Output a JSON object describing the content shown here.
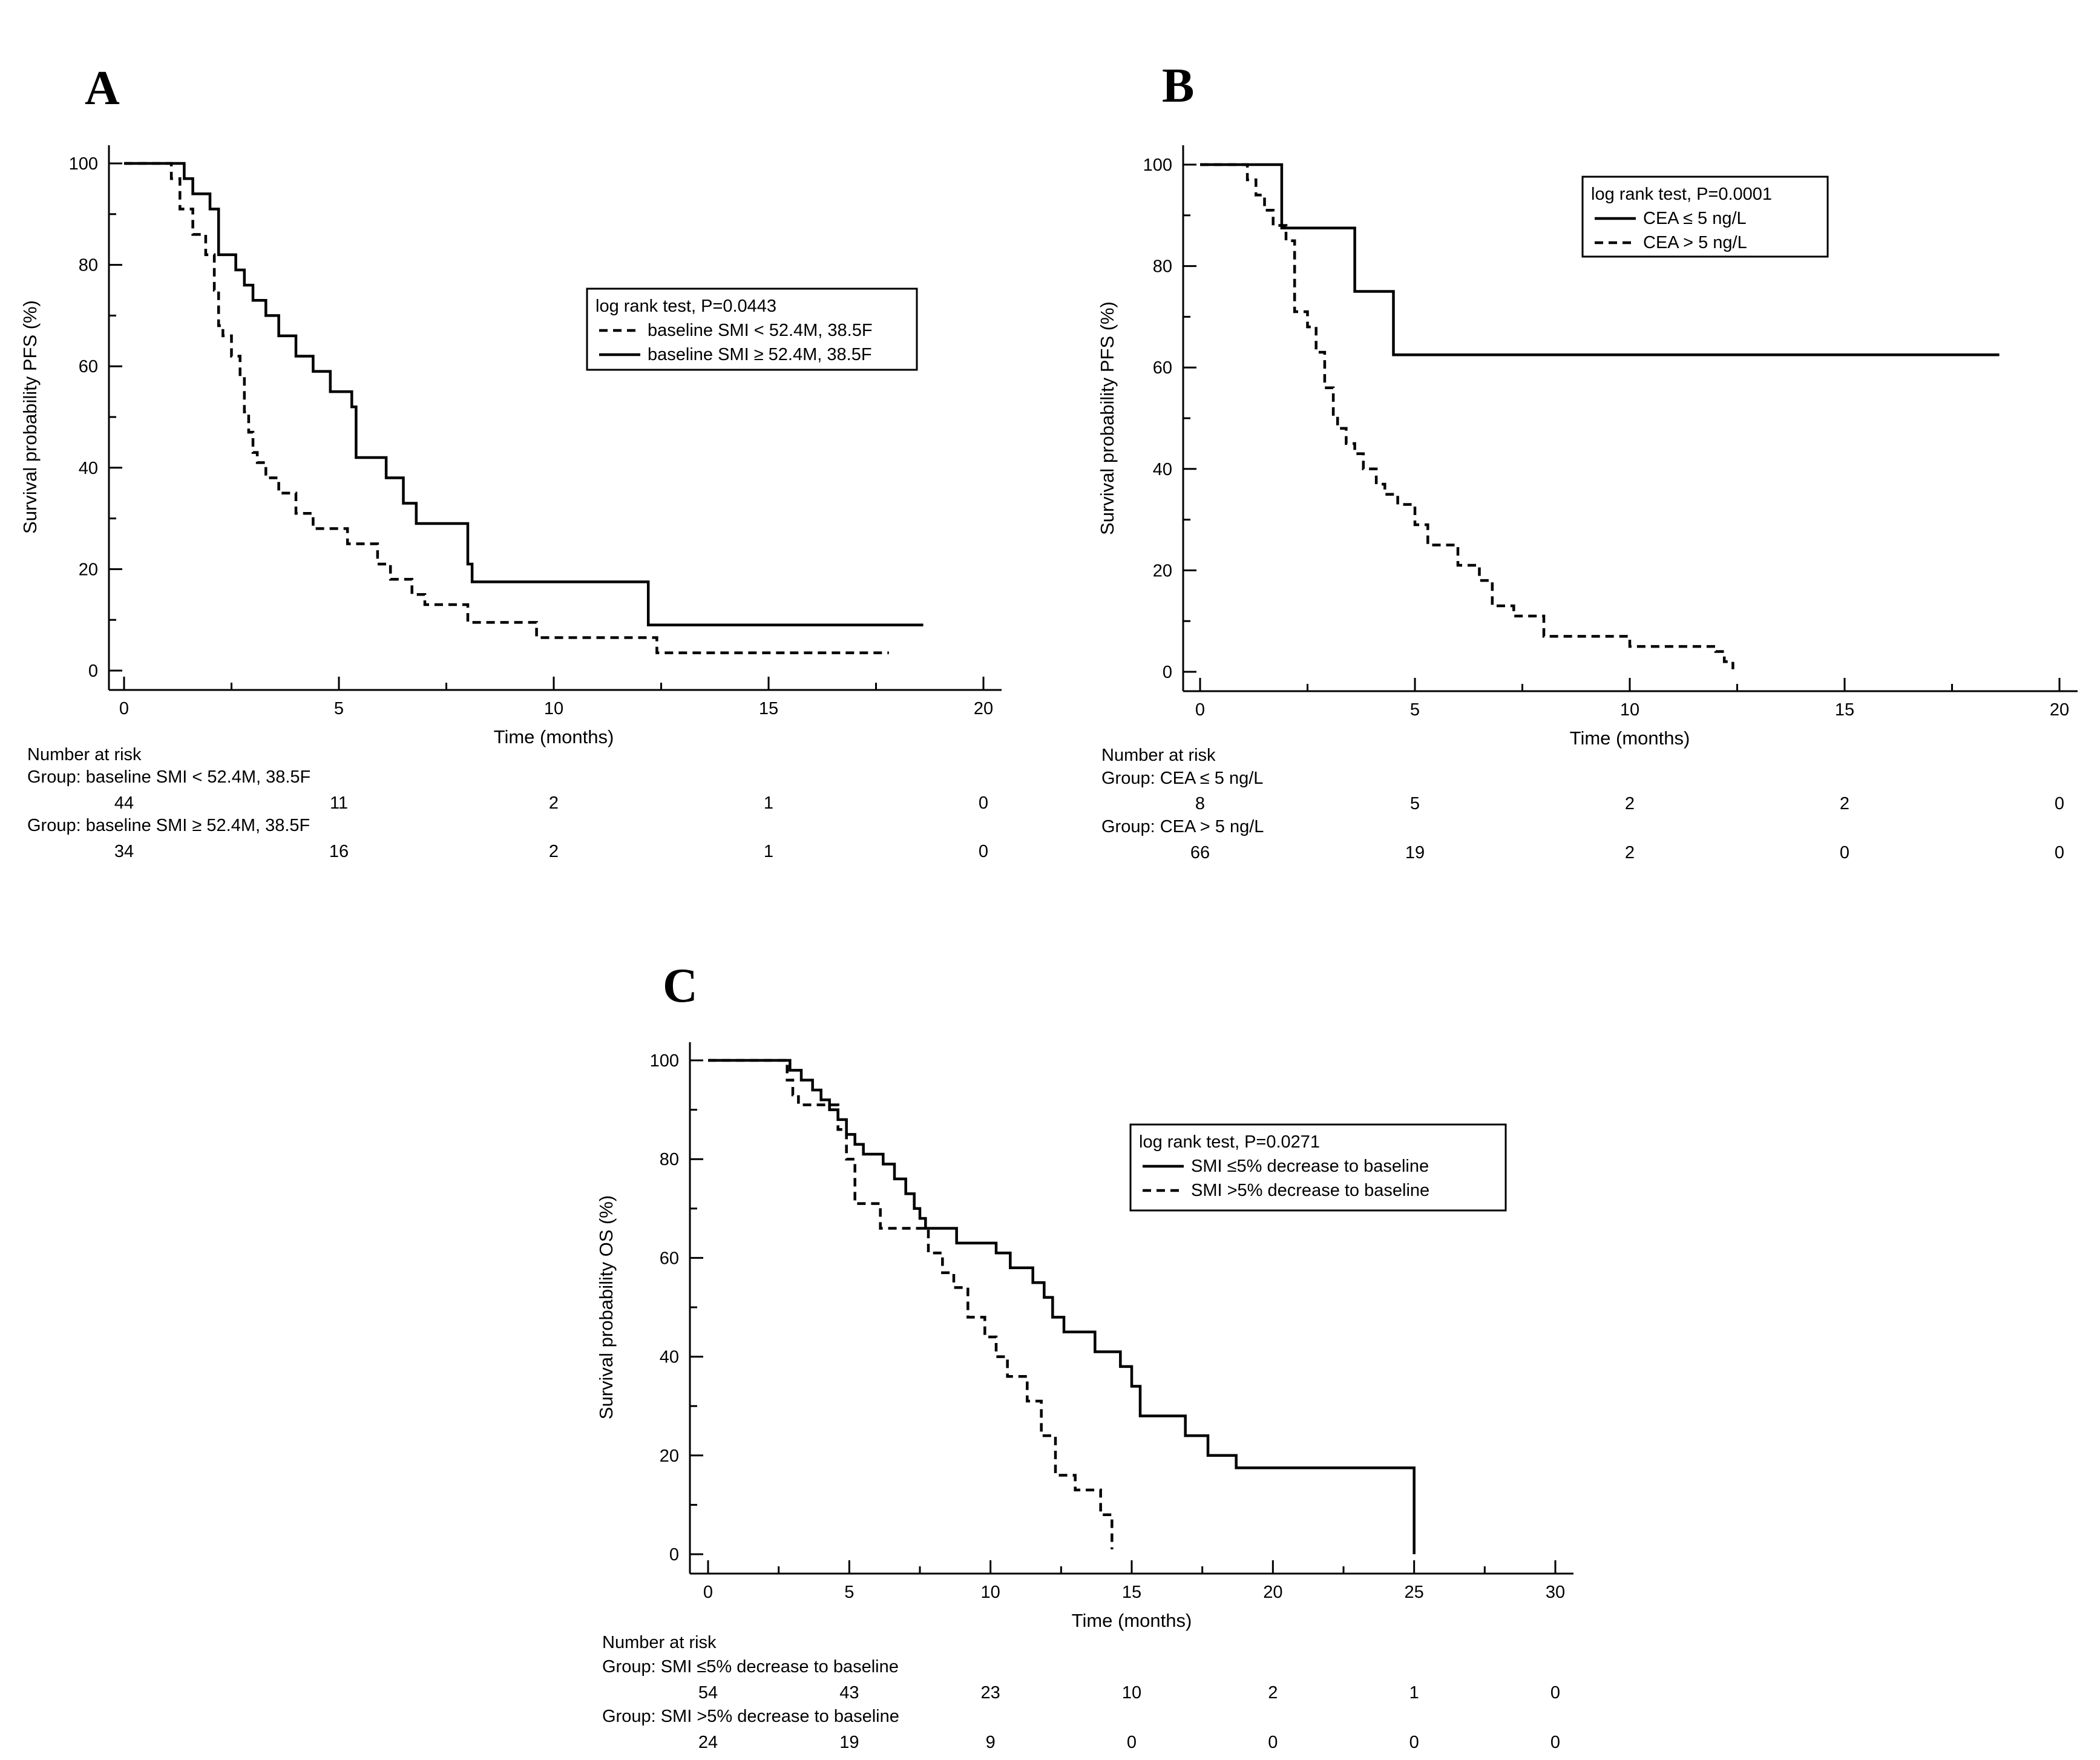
{
  "chart_data": [
    {
      "type": "line",
      "panel_label": "A",
      "xlabel": "Time (months)",
      "ylabel": "Survival probability PFS (%)",
      "xlim": [
        0,
        20
      ],
      "ylim": [
        0,
        100
      ],
      "x_ticks": [
        0,
        5,
        10,
        15,
        20
      ],
      "y_ticks": [
        0,
        20,
        40,
        60,
        80,
        100
      ],
      "legend": {
        "title": "log rank test, P=0.0443",
        "position": "top-right"
      },
      "series": [
        {
          "name": "baseline SMI < 52.4M, 38.5F",
          "style": "dashed",
          "x": [
            0,
            1.1,
            1.3,
            1.6,
            1.9,
            2.1,
            2.2,
            2.3,
            2.5,
            2.7,
            2.8,
            2.9,
            3.0,
            3.1,
            3.3,
            3.6,
            4.0,
            4.4,
            5.2,
            5.9,
            6.2,
            6.7,
            7.0,
            8.0,
            9.6,
            12.4,
            17.8
          ],
          "y": [
            100,
            97,
            91,
            86,
            82,
            75,
            68,
            66,
            62,
            58,
            51,
            47,
            43,
            41,
            38,
            35,
            31,
            28,
            25,
            21,
            18,
            15,
            13,
            9.5,
            6.5,
            3.5,
            3.5
          ]
        },
        {
          "name": "baseline SMI ≥ 52.4M, 38.5F",
          "style": "solid",
          "x": [
            0,
            1.4,
            1.6,
            2.0,
            2.2,
            2.6,
            2.8,
            3.0,
            3.3,
            3.6,
            4.0,
            4.4,
            4.8,
            5.3,
            5.4,
            6.1,
            6.5,
            6.8,
            8.0,
            8.1,
            12.2,
            18.6
          ],
          "y": [
            100,
            97,
            94,
            91,
            82,
            79,
            76,
            73,
            70,
            66,
            62,
            59,
            55,
            52,
            42,
            38,
            33,
            29,
            21,
            17.5,
            9,
            9
          ]
        }
      ],
      "risk_table": {
        "title": "Number at risk",
        "times": [
          0,
          5,
          10,
          15,
          20
        ],
        "groups": [
          {
            "label": "Group: baseline SMI < 52.4M, 38.5F",
            "counts": [
              44,
              11,
              2,
              1,
              0
            ]
          },
          {
            "label": "Group: baseline SMI ≥ 52.4M, 38.5F",
            "counts": [
              34,
              16,
              2,
              1,
              0
            ]
          }
        ]
      }
    },
    {
      "type": "line",
      "panel_label": "B",
      "xlabel": "Time (months)",
      "ylabel": "Survival probability PFS (%)",
      "xlim": [
        0,
        20
      ],
      "ylim": [
        0,
        100
      ],
      "x_ticks": [
        0,
        5,
        10,
        15,
        20
      ],
      "y_ticks": [
        0,
        20,
        40,
        60,
        80,
        100
      ],
      "legend": {
        "title": "log rank test, P=0.0001",
        "position": "top-right"
      },
      "series": [
        {
          "name": "CEA ≤ 5 ng/L",
          "style": "solid",
          "x": [
            0,
            1.9,
            3.6,
            4.5,
            18.6
          ],
          "y": [
            100,
            87.5,
            75,
            62.5,
            62.5
          ]
        },
        {
          "name": "CEA > 5 ng/L",
          "style": "dashed",
          "x": [
            0,
            1.1,
            1.3,
            1.5,
            1.7,
            2.0,
            2.2,
            2.5,
            2.7,
            2.9,
            3.1,
            3.2,
            3.4,
            3.6,
            3.8,
            4.1,
            4.3,
            4.6,
            5.0,
            5.3,
            6.0,
            6.5,
            6.8,
            7.3,
            8.0,
            10.0,
            12.0,
            12.2,
            12.4
          ],
          "y": [
            100,
            97,
            94,
            91,
            88,
            85,
            71,
            68,
            63,
            56,
            50,
            48,
            45,
            43,
            40,
            37,
            35,
            33,
            29,
            25,
            21,
            18,
            13,
            11,
            7,
            5,
            4,
            2,
            0.5
          ]
        }
      ],
      "risk_table": {
        "title": "Number at risk",
        "times": [
          0,
          5,
          10,
          15,
          20
        ],
        "groups": [
          {
            "label": "Group: CEA ≤ 5 ng/L",
            "counts": [
              8,
              5,
              2,
              2,
              0
            ]
          },
          {
            "label": "Group: CEA > 5 ng/L",
            "counts": [
              66,
              19,
              2,
              0,
              0
            ]
          }
        ]
      }
    },
    {
      "type": "line",
      "panel_label": "C",
      "xlabel": "Time (months)",
      "ylabel": "Survival probability OS (%)",
      "xlim": [
        0,
        30
      ],
      "ylim": [
        0,
        100
      ],
      "x_ticks": [
        0,
        5,
        10,
        15,
        20,
        25,
        30
      ],
      "y_ticks": [
        0,
        20,
        40,
        60,
        80,
        100
      ],
      "legend": {
        "title": "log rank test, P=0.0271",
        "position": "top-right"
      },
      "series": [
        {
          "name": "SMI ≤5% decrease to baseline",
          "style": "solid",
          "x": [
            0,
            2.9,
            3.3,
            3.7,
            4.0,
            4.3,
            4.6,
            4.9,
            5.2,
            5.5,
            6.2,
            6.6,
            7.0,
            7.3,
            7.5,
            7.7,
            8.8,
            10.2,
            10.7,
            11.5,
            11.9,
            12.2,
            12.6,
            13.7,
            14.6,
            15.0,
            15.3,
            16.9,
            17.7,
            18.7,
            25.0
          ],
          "y": [
            100,
            98,
            96,
            94,
            92,
            90,
            88,
            85,
            83,
            81,
            79,
            76,
            73,
            70,
            68,
            66,
            63,
            61,
            58,
            55,
            52,
            48,
            45,
            41,
            38,
            34,
            28,
            24,
            20,
            17.5,
            0
          ]
        },
        {
          "name": "SMI >5% decrease to baseline",
          "style": "dashed",
          "x": [
            0,
            2.8,
            3.0,
            3.2,
            4.6,
            4.9,
            5.2,
            6.1,
            7.8,
            8.3,
            8.7,
            9.2,
            9.8,
            10.2,
            10.6,
            11.3,
            11.8,
            12.3,
            13.0,
            13.9,
            14.3
          ],
          "y": [
            100,
            96,
            93,
            91,
            86,
            80,
            71,
            66,
            61,
            57,
            54,
            48,
            44,
            40,
            36,
            31,
            24,
            16,
            13,
            8,
            1
          ]
        }
      ],
      "risk_table": {
        "title": "Number at risk",
        "times": [
          0,
          5,
          10,
          15,
          20,
          25,
          30
        ],
        "groups": [
          {
            "label": "Group: SMI ≤5% decrease to baseline",
            "counts": [
              54,
              43,
              23,
              10,
              2,
              1,
              0
            ]
          },
          {
            "label": "Group: SMI >5% decrease to baseline",
            "counts": [
              24,
              19,
              9,
              0,
              0,
              0,
              0
            ]
          }
        ]
      }
    }
  ]
}
